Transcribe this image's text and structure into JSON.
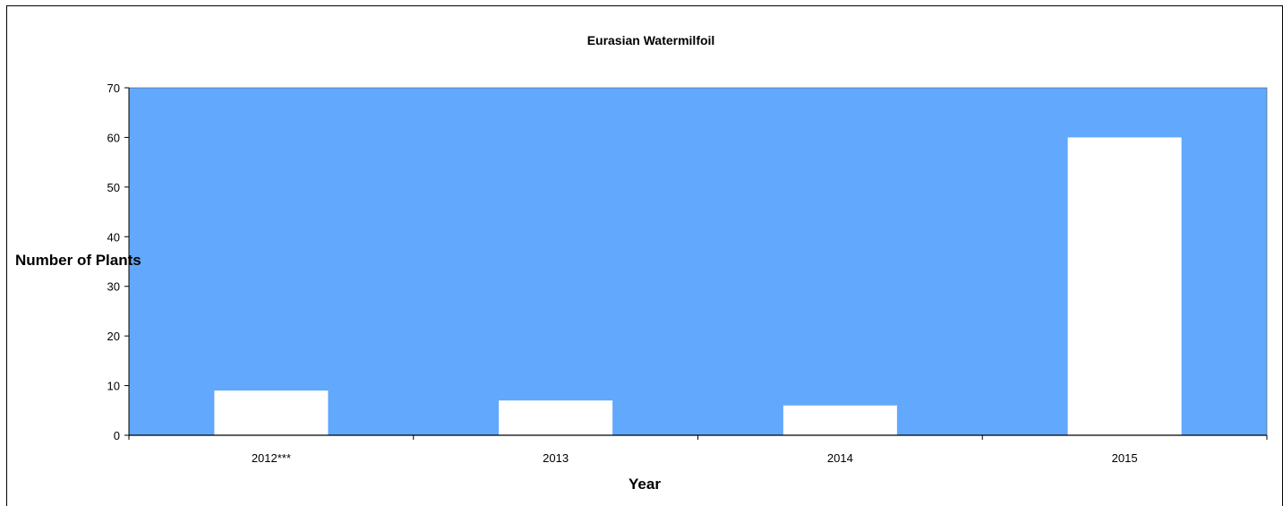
{
  "chart_data": {
    "type": "bar",
    "title": "Eurasian Watermilfoil",
    "xlabel": "Year",
    "ylabel": "Number of Plants",
    "categories": [
      "2012***",
      "2013",
      "2014",
      "2015"
    ],
    "values": [
      9,
      7,
      6,
      60
    ],
    "ylim": [
      0,
      70
    ],
    "yticks": [
      "0",
      "10",
      "20",
      "30",
      "40",
      "50",
      "60",
      "70"
    ],
    "grid": false,
    "legend": "none",
    "colors": {
      "plot_background": "#62a8fc",
      "bar_fill": "#ffffff",
      "axis": "#000000"
    }
  }
}
